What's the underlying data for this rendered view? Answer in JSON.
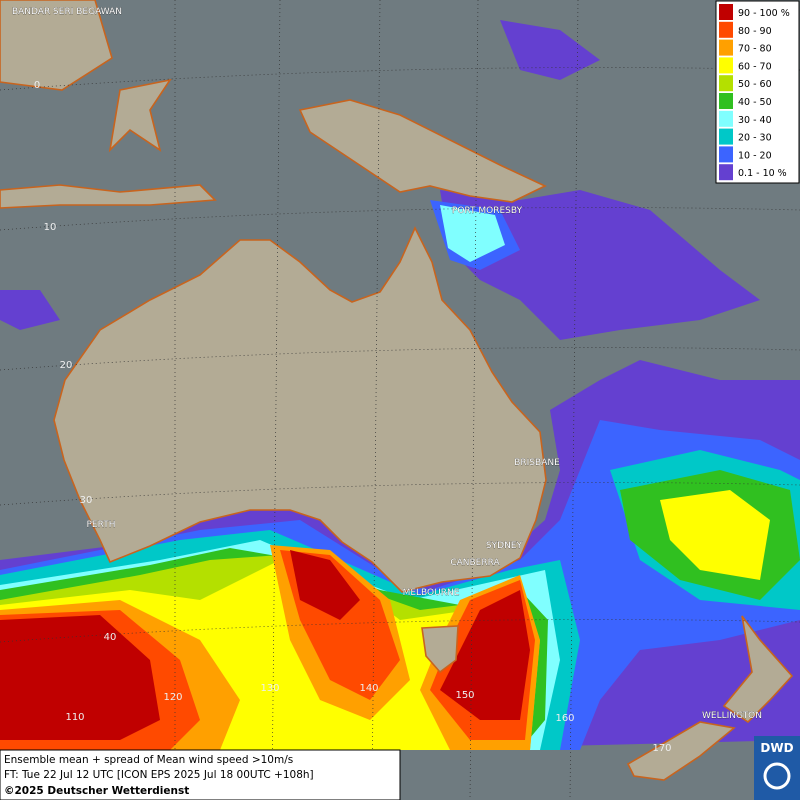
{
  "legend": [
    {
      "label": "90 - 100 %",
      "color": "#c00000"
    },
    {
      "label": "80 - 90",
      "color": "#ff4a00"
    },
    {
      "label": "70 - 80",
      "color": "#ffa000"
    },
    {
      "label": "60 - 70",
      "color": "#ffff00"
    },
    {
      "label": "50 - 60",
      "color": "#b4e000"
    },
    {
      "label": "40 - 50",
      "color": "#30c020"
    },
    {
      "label": "30 - 40",
      "color": "#80ffff"
    },
    {
      "label": "20 - 30",
      "color": "#00c8c8"
    },
    {
      "label": "10 - 20",
      "color": "#3c64ff"
    },
    {
      "label": "0.1 - 10 %",
      "color": "#6440d0"
    }
  ],
  "cities": [
    "BANDAR SERI BEGAWAN",
    "PORT MORESBY",
    "BRISBANE",
    "PERTH",
    "SYDNEY",
    "CANBERRA",
    "MELBOURNE",
    "WELLINGTON"
  ],
  "lat_labels": [
    "0",
    "10",
    "20",
    "30",
    "40"
  ],
  "lon_labels": [
    "110",
    "120",
    "130",
    "140",
    "150",
    "160",
    "170"
  ],
  "footer": {
    "line1": "Ensemble mean + spread of Mean wind speed >10m/s",
    "line2": "FT: Tue 22 Jul 12 UTC [ICON EPS 2025 Jul 18 00UTC +108h]",
    "line3": "©2025 Deutscher Wetterdienst"
  },
  "logo": "DWD"
}
